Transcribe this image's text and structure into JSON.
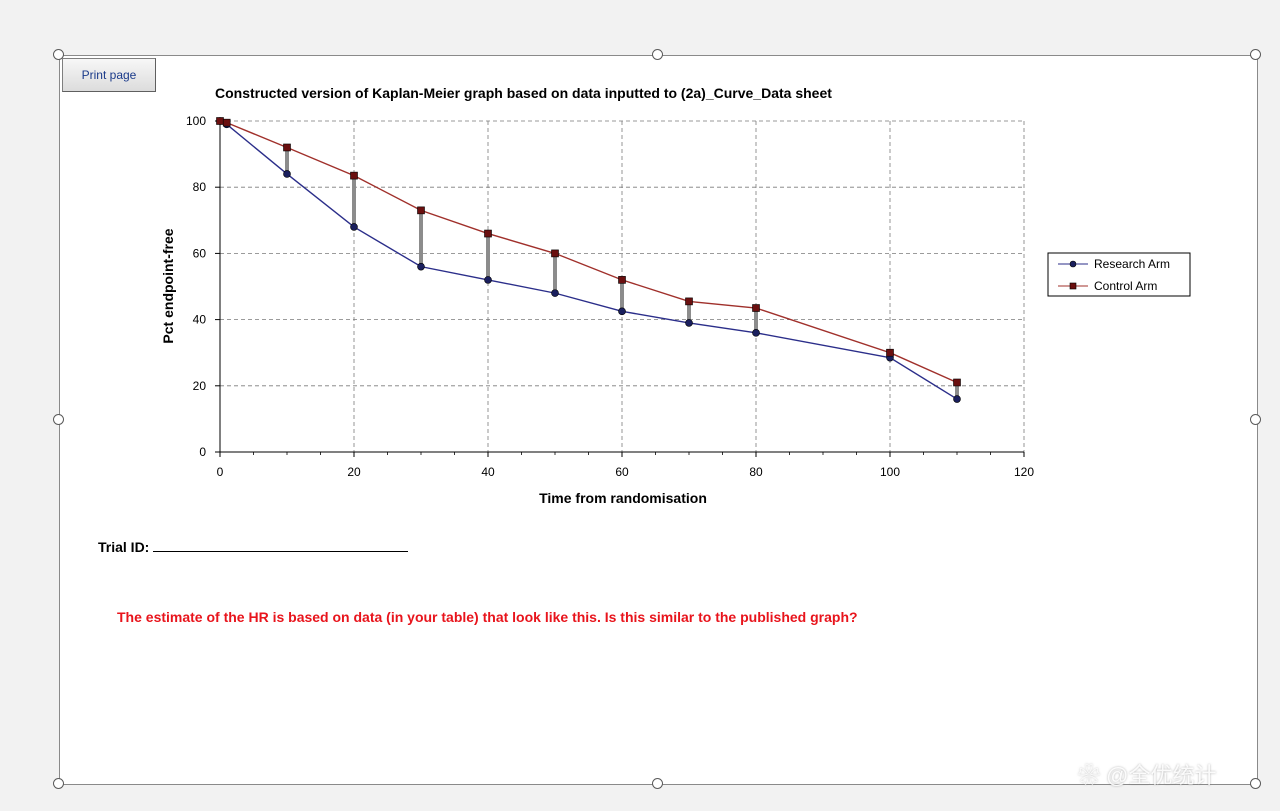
{
  "print_button": {
    "label": "Print page"
  },
  "trial": {
    "label": "Trial ID:"
  },
  "warning_text": "The estimate of the HR is based on data (in your table) that look like this.  Is this similar to the published graph?",
  "watermark": "❀ @全优统计",
  "colors": {
    "research": "#2b2e8a",
    "control": "#a0302b",
    "gap": "#8c8c8c",
    "warning": "#e8141c"
  },
  "chart_data": {
    "type": "line",
    "title": "Constructed version of Kaplan-Meier graph based on data inputted to (2a)_Curve_Data sheet",
    "xlabel": "Time from randomisation",
    "ylabel": "Pct endpoint-free",
    "xlim": [
      0,
      120
    ],
    "ylim": [
      0,
      100
    ],
    "xticks": [
      0,
      20,
      40,
      60,
      80,
      100,
      120
    ],
    "yticks": [
      0,
      20,
      40,
      60,
      80,
      100
    ],
    "grid": true,
    "legend_position": "right",
    "x": [
      0,
      1,
      10,
      20,
      30,
      40,
      50,
      60,
      70,
      80,
      100,
      110
    ],
    "series": [
      {
        "name": "Research Arm",
        "marker": "circle",
        "color": "#2b2e8a",
        "values": [
          100,
          99,
          84,
          68,
          56,
          52,
          48,
          42.5,
          39,
          36,
          28.5,
          16
        ]
      },
      {
        "name": "Control Arm",
        "marker": "square",
        "color": "#a0302b",
        "values": [
          100,
          99.5,
          92,
          83.5,
          73,
          66,
          60,
          52,
          45.5,
          43.5,
          30,
          21
        ]
      }
    ]
  }
}
